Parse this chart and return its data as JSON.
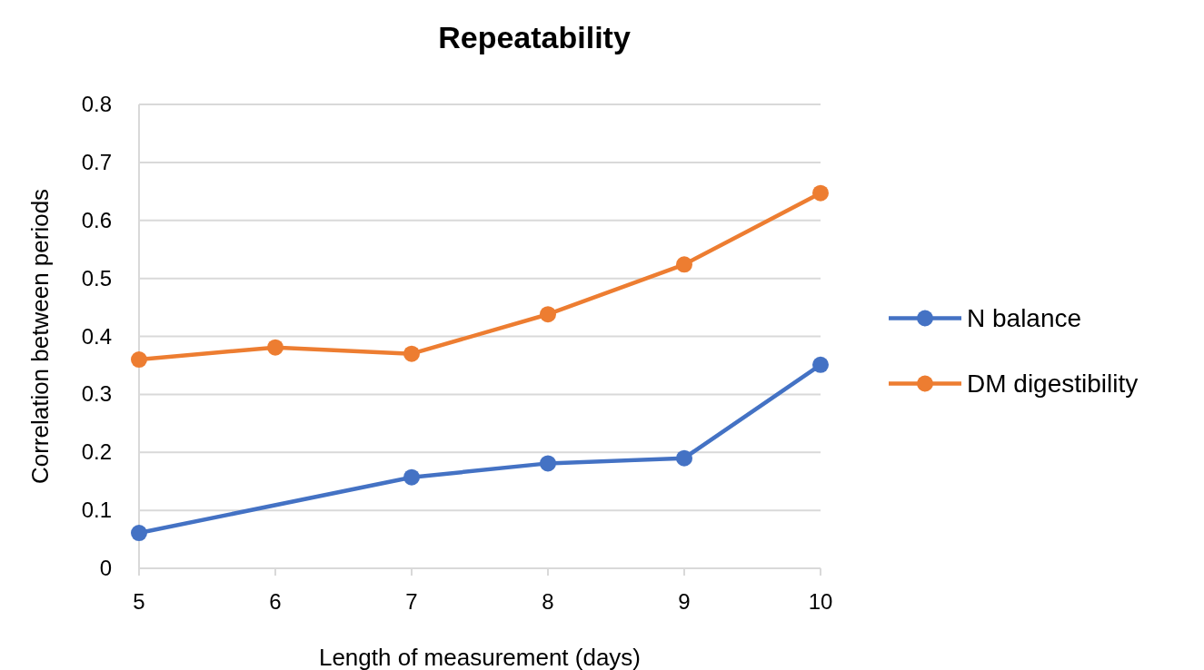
{
  "chart_data": {
    "type": "line",
    "title": "Repeatability",
    "xlabel": "Length of measurement (days)",
    "ylabel": "Correlation between periods",
    "xlim": [
      5,
      10
    ],
    "xticks": [
      5,
      6,
      7,
      8,
      9,
      10
    ],
    "ylim": [
      0,
      0.8
    ],
    "yticks": [
      0,
      0.1,
      0.2,
      0.3,
      0.4,
      0.5,
      0.6,
      0.7,
      0.8
    ],
    "grid": "y",
    "legend": "right",
    "marker": "circle",
    "line_style": "solid",
    "series": [
      {
        "name": "N balance",
        "color": "#4472c4",
        "x": [
          5,
          7,
          8,
          9,
          10
        ],
        "values": [
          0.061,
          0.157,
          0.181,
          0.19,
          0.351
        ]
      },
      {
        "name": "DM digestibility",
        "color": "#ed7d31",
        "x": [
          5,
          6,
          7,
          8,
          9,
          10
        ],
        "values": [
          0.36,
          0.381,
          0.37,
          0.438,
          0.524,
          0.647
        ]
      }
    ]
  }
}
